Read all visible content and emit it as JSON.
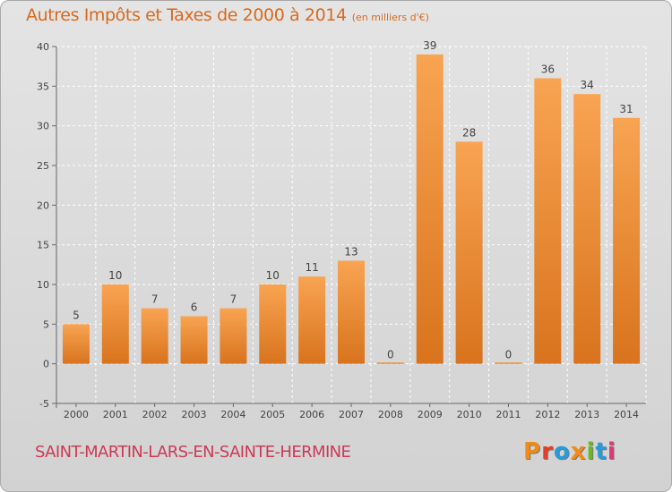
{
  "header": {
    "title": "Autres Impôts et Taxes de 2000 à 2014",
    "unit": "(en milliers d'€)"
  },
  "footer": {
    "commune": "SAINT-MARTIN-LARS-EN-SAINTE-HERMINE",
    "logo_text": "Proxiti",
    "logo_colors": [
      "#f08a18",
      "#e0402a",
      "#2a9ad8",
      "#f08a18",
      "#68b820",
      "#2a9ad8",
      "#d83a78"
    ]
  },
  "colors": {
    "bar_light": "#f8a452",
    "bar_dark": "#d9731d",
    "title": "#d86a1e",
    "commune": "#cc3a55"
  },
  "chart_data": {
    "type": "bar",
    "title": "Autres Impôts et Taxes de 2000 à 2014",
    "xlabel": "",
    "ylabel": "",
    "categories": [
      "2000",
      "2001",
      "2002",
      "2003",
      "2004",
      "2005",
      "2006",
      "2007",
      "2008",
      "2009",
      "2010",
      "2011",
      "2012",
      "2013",
      "2014"
    ],
    "values": [
      5,
      10,
      7,
      6,
      7,
      10,
      11,
      13,
      0,
      39,
      28,
      0,
      36,
      34,
      31
    ],
    "ylim": [
      -5,
      40
    ],
    "yticks": [
      -5,
      0,
      5,
      10,
      15,
      20,
      25,
      30,
      35,
      40
    ],
    "grid": true,
    "legend": "none"
  }
}
